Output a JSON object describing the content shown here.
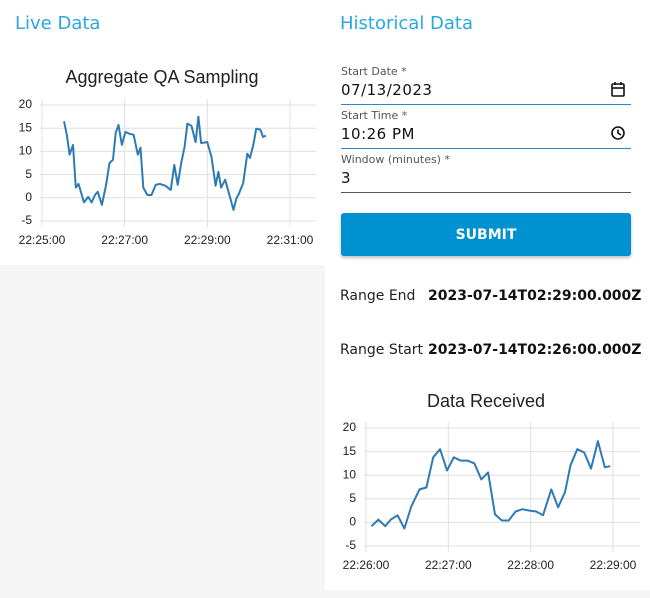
{
  "live": {
    "heading": "Live Data"
  },
  "historical": {
    "heading": "Historical Data",
    "fields": [
      {
        "label": "Start Date *",
        "value": "07/13/2023"
      },
      {
        "label": "Start Time *",
        "value": "10:26 PM"
      },
      {
        "label": "Window (minutes) *",
        "value": "3"
      }
    ],
    "submit": "SUBMIT",
    "range_end": {
      "label": "Range End",
      "value": "2023-07-14T02:29:00.000Z"
    },
    "range_start": {
      "label": "Range Start",
      "value": "2023-07-14T02:26:00.000Z"
    }
  },
  "chart_data": [
    {
      "type": "line",
      "title": "Aggregate QA Sampling",
      "color": "#2e7bb4",
      "grid": true,
      "x": [
        "22:25:32",
        "22:25:36",
        "22:25:40",
        "22:25:45",
        "22:25:49",
        "22:25:53",
        "22:26:01",
        "22:26:07",
        "22:26:12",
        "22:26:17",
        "22:26:21",
        "22:26:27",
        "22:26:33",
        "22:26:38",
        "22:26:43",
        "22:26:47",
        "22:26:51",
        "22:26:56",
        "22:27:01",
        "22:27:07",
        "22:27:13",
        "22:27:19",
        "22:27:23",
        "22:27:27",
        "22:27:33",
        "22:27:39",
        "22:27:45",
        "22:27:51",
        "22:27:59",
        "22:28:07",
        "22:28:12",
        "22:28:17",
        "22:28:22",
        "22:28:27",
        "22:28:31",
        "22:28:37",
        "22:28:43",
        "22:28:47",
        "22:28:51",
        "22:29:00",
        "22:29:06",
        "22:29:12",
        "22:29:16",
        "22:29:20",
        "22:29:26",
        "22:29:32",
        "22:29:38",
        "22:29:42",
        "22:29:46",
        "22:29:52",
        "22:29:58",
        "22:30:02",
        "22:30:07",
        "22:30:11",
        "22:30:17",
        "22:30:21",
        "22:30:25"
      ],
      "values": [
        16.5,
        13.6,
        9.3,
        11.4,
        2.2,
        3,
        -1,
        0.2,
        -1,
        0.6,
        1.3,
        -1.5,
        2.8,
        7.5,
        8.2,
        14,
        15.7,
        11.4,
        14.2,
        13.8,
        13.6,
        9.3,
        10.8,
        2.2,
        0.6,
        0.6,
        2.8,
        3,
        2.6,
        1.7,
        7.1,
        2.8,
        7.5,
        11,
        16,
        15.5,
        12,
        17.5,
        11.8,
        12,
        8.8,
        2.6,
        5.6,
        2.2,
        3.9,
        0.6,
        -2.6,
        -0.2,
        0.9,
        3.2,
        9.5,
        8.6,
        11.6,
        14.9,
        14.7,
        13.1,
        13.4
      ],
      "xlim": [
        "22:25:00",
        "22:31:00"
      ],
      "xticks": [
        "22:25:00",
        "22:27:00",
        "22:29:00",
        "22:31:00"
      ],
      "ylim": [
        -5,
        20
      ],
      "yticks": [
        20,
        15,
        10,
        5,
        0,
        -5
      ]
    },
    {
      "type": "line",
      "title": "Data Received",
      "color": "#2e7bb4",
      "grid": true,
      "x": [
        "22:26:04",
        "22:26:09",
        "22:26:14",
        "22:26:18",
        "22:26:23",
        "22:26:28",
        "22:26:33",
        "22:26:39",
        "22:26:44",
        "22:26:49",
        "22:26:54",
        "22:26:59",
        "22:27:04",
        "22:27:09",
        "22:27:14",
        "22:27:19",
        "22:27:24",
        "22:27:29",
        "22:27:34",
        "22:27:39",
        "22:27:44",
        "22:27:49",
        "22:27:54",
        "22:27:59",
        "22:28:04",
        "22:28:09",
        "22:28:15",
        "22:28:20",
        "22:28:25",
        "22:28:29",
        "22:28:34",
        "22:28:39",
        "22:28:44",
        "22:28:49",
        "22:28:54",
        "22:28:58"
      ],
      "values": [
        -0.8,
        0.6,
        -0.8,
        0.6,
        1.5,
        -1.3,
        3.4,
        7,
        7.4,
        13.8,
        15.5,
        11,
        13.8,
        13.1,
        13.1,
        12.5,
        9.1,
        10.6,
        1.7,
        0.4,
        0.4,
        2.3,
        2.8,
        2.5,
        2.3,
        1.5,
        7,
        3.2,
        6.4,
        12.1,
        15.5,
        14.8,
        11.4,
        17.2,
        11.7,
        11.9
      ],
      "xlim": [
        "22:26:00",
        "22:29:00"
      ],
      "xticks": [
        "22:26:00",
        "22:27:00",
        "22:28:00",
        "22:29:00"
      ],
      "ylim": [
        -5,
        20
      ],
      "yticks": [
        20,
        15,
        10,
        5,
        0,
        -5
      ]
    }
  ]
}
